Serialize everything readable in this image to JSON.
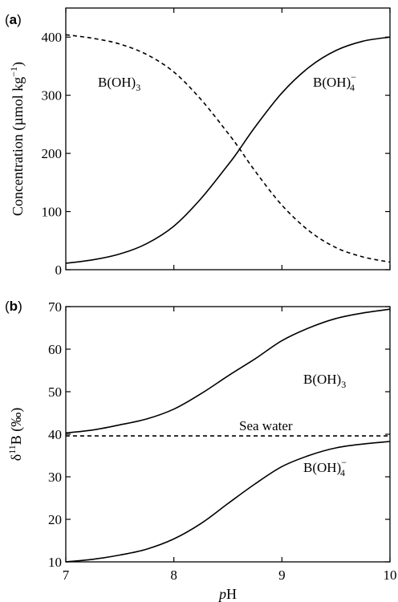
{
  "chart_data": [
    {
      "panel": "(a)",
      "type": "line",
      "ylabel": "Concentration (µmol kg⁻¹)",
      "ylabel_parts": {
        "main": "Concentration (",
        "mu": "µ",
        "unit": "mol kg",
        "exp": "−1",
        "close": ")"
      },
      "xlim": [
        7,
        10
      ],
      "ylim": [
        0,
        450
      ],
      "xticks": [
        7,
        8,
        9,
        10
      ],
      "yticks": [
        0,
        100,
        200,
        300,
        400
      ],
      "grid": false,
      "series": [
        {
          "name": "B(OH)3",
          "label_main": "B(OH)",
          "label_sub": "3",
          "style": "dashed",
          "x": [
            7.0,
            7.25,
            7.5,
            7.75,
            8.0,
            8.25,
            8.5,
            8.6,
            8.75,
            9.0,
            9.25,
            9.5,
            9.75,
            10.0
          ],
          "y": [
            404,
            398,
            388,
            370,
            340,
            293,
            235,
            210,
            170,
            111,
            67,
            38,
            22,
            13
          ]
        },
        {
          "name": "B(OH)4−",
          "label_main": "B(OH)",
          "label_sub": "4",
          "label_sup": "−",
          "style": "solid",
          "x": [
            7.0,
            7.25,
            7.5,
            7.75,
            8.0,
            8.25,
            8.5,
            8.6,
            8.75,
            9.0,
            9.25,
            9.5,
            9.75,
            10.0
          ],
          "y": [
            11,
            17,
            27,
            45,
            75,
            122,
            180,
            205,
            245,
            304,
            348,
            377,
            393,
            400
          ]
        }
      ]
    },
    {
      "panel": "(b)",
      "type": "line",
      "ylabel": "δ¹¹B (‰)",
      "ylabel_parts": {
        "delta": "δ",
        "sup": "11",
        "main": "B (‰)"
      },
      "xlabel": "pH",
      "xlabel_parts": {
        "italic": "p",
        "normal": "H"
      },
      "xlim": [
        7,
        10
      ],
      "ylim": [
        10,
        70
      ],
      "xticks": [
        7,
        8,
        9,
        10
      ],
      "yticks": [
        10,
        20,
        30,
        40,
        50,
        60,
        70
      ],
      "grid": false,
      "series": [
        {
          "name": "B(OH)3",
          "label_main": "B(OH)",
          "label_sub": "3",
          "style": "solid",
          "x": [
            7.0,
            7.25,
            7.5,
            7.75,
            8.0,
            8.25,
            8.5,
            8.75,
            9.0,
            9.25,
            9.5,
            9.75,
            10.0
          ],
          "y": [
            40.3,
            41.0,
            42.2,
            43.6,
            45.9,
            49.5,
            53.7,
            57.7,
            62.0,
            65.0,
            67.2,
            68.5,
            69.4
          ]
        },
        {
          "name": "Sea water",
          "style": "dashed",
          "x": [
            7.0,
            10.0
          ],
          "y": [
            39.6,
            39.6
          ]
        },
        {
          "name": "B(OH)4−",
          "label_main": "B(OH)",
          "label_sub": "4",
          "label_sup": "−",
          "style": "solid",
          "x": [
            7.0,
            7.25,
            7.5,
            7.75,
            8.0,
            8.25,
            8.5,
            8.75,
            9.0,
            9.25,
            9.5,
            9.75,
            10.0
          ],
          "y": [
            10.0,
            10.6,
            11.6,
            13.0,
            15.4,
            19.0,
            23.7,
            28.3,
            32.4,
            35.0,
            36.8,
            37.7,
            38.3
          ]
        }
      ]
    }
  ]
}
